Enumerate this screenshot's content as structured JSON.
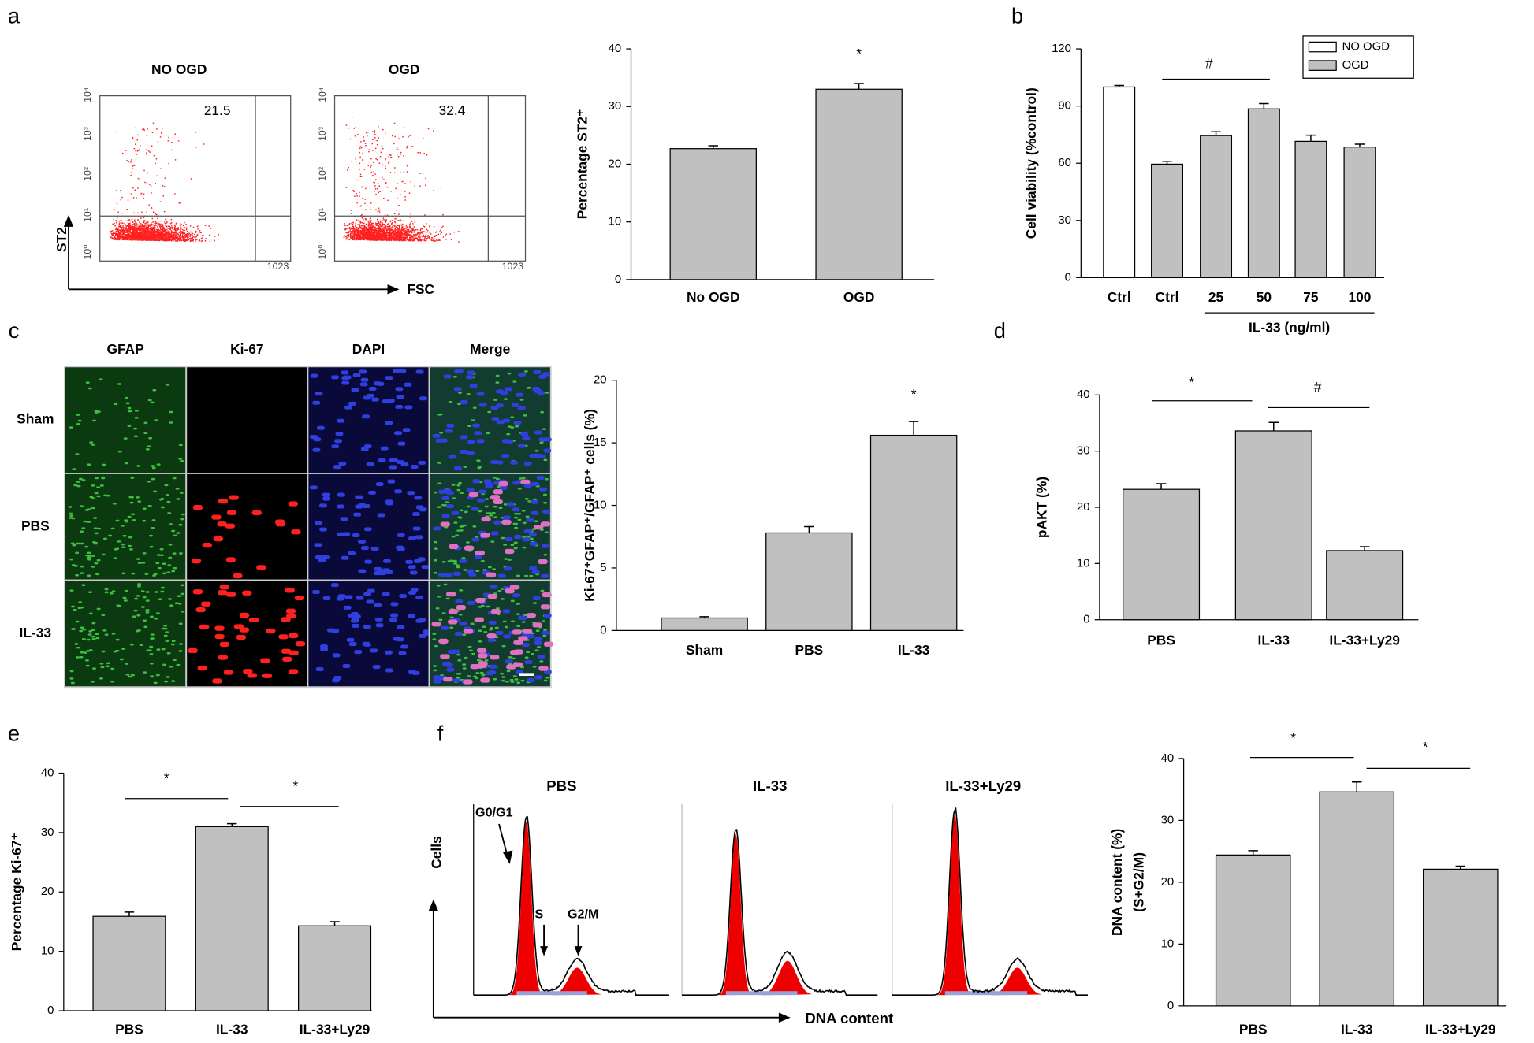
{
  "figure": {
    "panel_labels": [
      "a",
      "b",
      "c",
      "d",
      "e",
      "f"
    ],
    "flow": {
      "y_axis_label": "ST2",
      "x_axis_label": "FSC",
      "y_tick_labels": [
        "10⁰",
        "10¹",
        "10²",
        "10³",
        "10⁴"
      ],
      "x_max_label": "1023",
      "plots": [
        {
          "title": "NO OGD",
          "gate_value": 21.5
        },
        {
          "title": "OGD",
          "gate_value": 32.4
        }
      ]
    },
    "microscopy": {
      "columns": [
        "GFAP",
        "Ki-67",
        "DAPI",
        "Merge"
      ],
      "rows": [
        "Sham",
        "PBS",
        "IL-33"
      ]
    },
    "cell_cycle": {
      "y_axis_label": "Cells",
      "x_axis_label": "DNA content",
      "plots": [
        "PBS",
        "IL-33",
        "IL-33+Ly29"
      ],
      "phase_labels": [
        "G0/G1",
        "S",
        "G2/M"
      ]
    }
  },
  "chart_data": [
    {
      "type": "bar",
      "ylabel": "Percentage ST2⁺",
      "categories": [
        "No OGD",
        "OGD"
      ],
      "values": [
        22.7,
        33.0
      ],
      "errors": [
        0.5,
        1.0
      ],
      "color": "#c0c0c0",
      "ylim": [
        0,
        40
      ],
      "yticks": [
        0,
        10,
        20,
        30,
        40
      ],
      "annotations": [
        "*"
      ]
    },
    {
      "type": "grouped_bar",
      "ylabel": "Cell viability (%control)",
      "categories": [
        "Ctrl",
        "Ctrl",
        "25",
        "50",
        "75",
        "100"
      ],
      "group_label": "IL-33 (ng/ml)",
      "series": [
        {
          "name": "NO OGD",
          "color": "#ffffff",
          "values": [
            100,
            null,
            null,
            null,
            null,
            null
          ],
          "errors": [
            0.8,
            null,
            null,
            null,
            null,
            null
          ]
        },
        {
          "name": "OGD",
          "color": "#c0c0c0",
          "values": [
            null,
            59.5,
            74.5,
            88.5,
            71.5,
            68.5
          ],
          "errors": [
            null,
            1.5,
            2.0,
            2.8,
            3.2,
            1.5
          ]
        }
      ],
      "legend": "upper right",
      "ylim": [
        0,
        120
      ],
      "yticks": [
        0,
        30,
        60,
        90,
        120
      ],
      "annotations": [
        "#"
      ]
    },
    {
      "type": "bar",
      "ylabel": "Ki-67⁺GFAP⁺/GFAP⁺ cells (%)",
      "categories": [
        "Sham",
        "PBS",
        "IL-33"
      ],
      "values": [
        1.0,
        7.8,
        15.6
      ],
      "errors": [
        0.1,
        0.5,
        1.1
      ],
      "color": "#c0c0c0",
      "ylim": [
        0,
        20
      ],
      "yticks": [
        0,
        5,
        10,
        15,
        20
      ],
      "annotations": [
        "*"
      ]
    },
    {
      "type": "bar",
      "ylabel": "pAKT (%)",
      "categories": [
        "PBS",
        "IL-33",
        "IL-33+Ly29"
      ],
      "values": [
        23.2,
        33.6,
        12.3
      ],
      "errors": [
        1.0,
        1.5,
        0.7
      ],
      "color": "#c0c0c0",
      "ylim": [
        0,
        40
      ],
      "yticks": [
        0,
        10,
        20,
        30,
        40
      ],
      "annotations": [
        "*",
        "#"
      ]
    },
    {
      "type": "bar",
      "ylabel": "Percentage Ki-67⁺",
      "categories": [
        "PBS",
        "IL-33",
        "IL-33+Ly29"
      ],
      "values": [
        15.9,
        31.0,
        14.3
      ],
      "errors": [
        0.7,
        0.5,
        0.7
      ],
      "color": "#c0c0c0",
      "ylim": [
        0,
        40
      ],
      "yticks": [
        0,
        10,
        20,
        30,
        40
      ],
      "annotations": [
        "*",
        "*"
      ]
    },
    {
      "type": "bar",
      "ylabel": [
        "DNA content (%)",
        "(S+G2/M)"
      ],
      "categories": [
        "PBS",
        "IL-33",
        "IL-33+Ly29"
      ],
      "values": [
        24.4,
        34.6,
        22.1
      ],
      "errors": [
        0.7,
        1.6,
        0.5
      ],
      "color": "#c0c0c0",
      "ylim": [
        0,
        40
      ],
      "yticks": [
        0,
        10,
        20,
        30,
        40
      ],
      "annotations": [
        "*",
        "*"
      ]
    }
  ]
}
